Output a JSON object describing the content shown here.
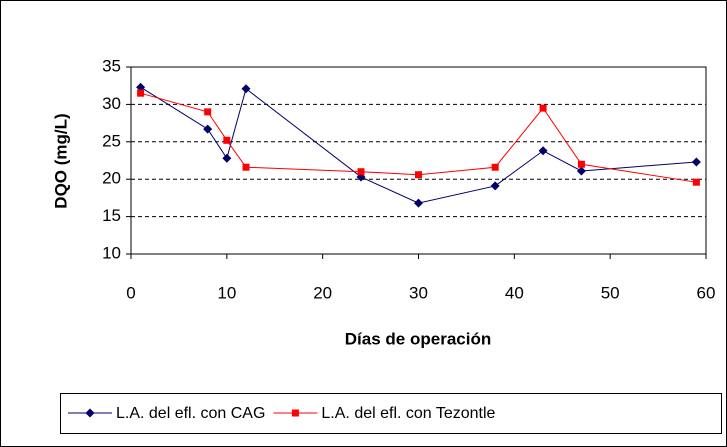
{
  "chart_data": {
    "type": "line",
    "x_label": "Días de operación",
    "y_label": "DQO (mg/L)",
    "x": [
      1,
      8,
      10,
      12,
      24,
      30,
      38,
      43,
      47,
      59
    ],
    "series": [
      {
        "name": "L.A. del efl. con CAG",
        "color": "#000066",
        "marker": "diamond",
        "values": [
          32.3,
          26.7,
          22.8,
          32.1,
          20.3,
          16.8,
          19.1,
          23.8,
          21.1,
          22.3
        ]
      },
      {
        "name": "L.A. del efl. con Tezontle",
        "color": "#ff0000",
        "marker": "square",
        "values": [
          31.5,
          29.0,
          25.2,
          21.6,
          21.0,
          20.6,
          21.6,
          29.5,
          22.0,
          19.6
        ]
      }
    ],
    "xlim": [
      0,
      60
    ],
    "xticks": [
      0,
      10,
      20,
      30,
      40,
      50,
      60
    ],
    "ylim": [
      10,
      35
    ],
    "yticks": [
      10,
      15,
      20,
      25,
      30,
      35
    ],
    "grid": true,
    "legend": "bottom"
  }
}
